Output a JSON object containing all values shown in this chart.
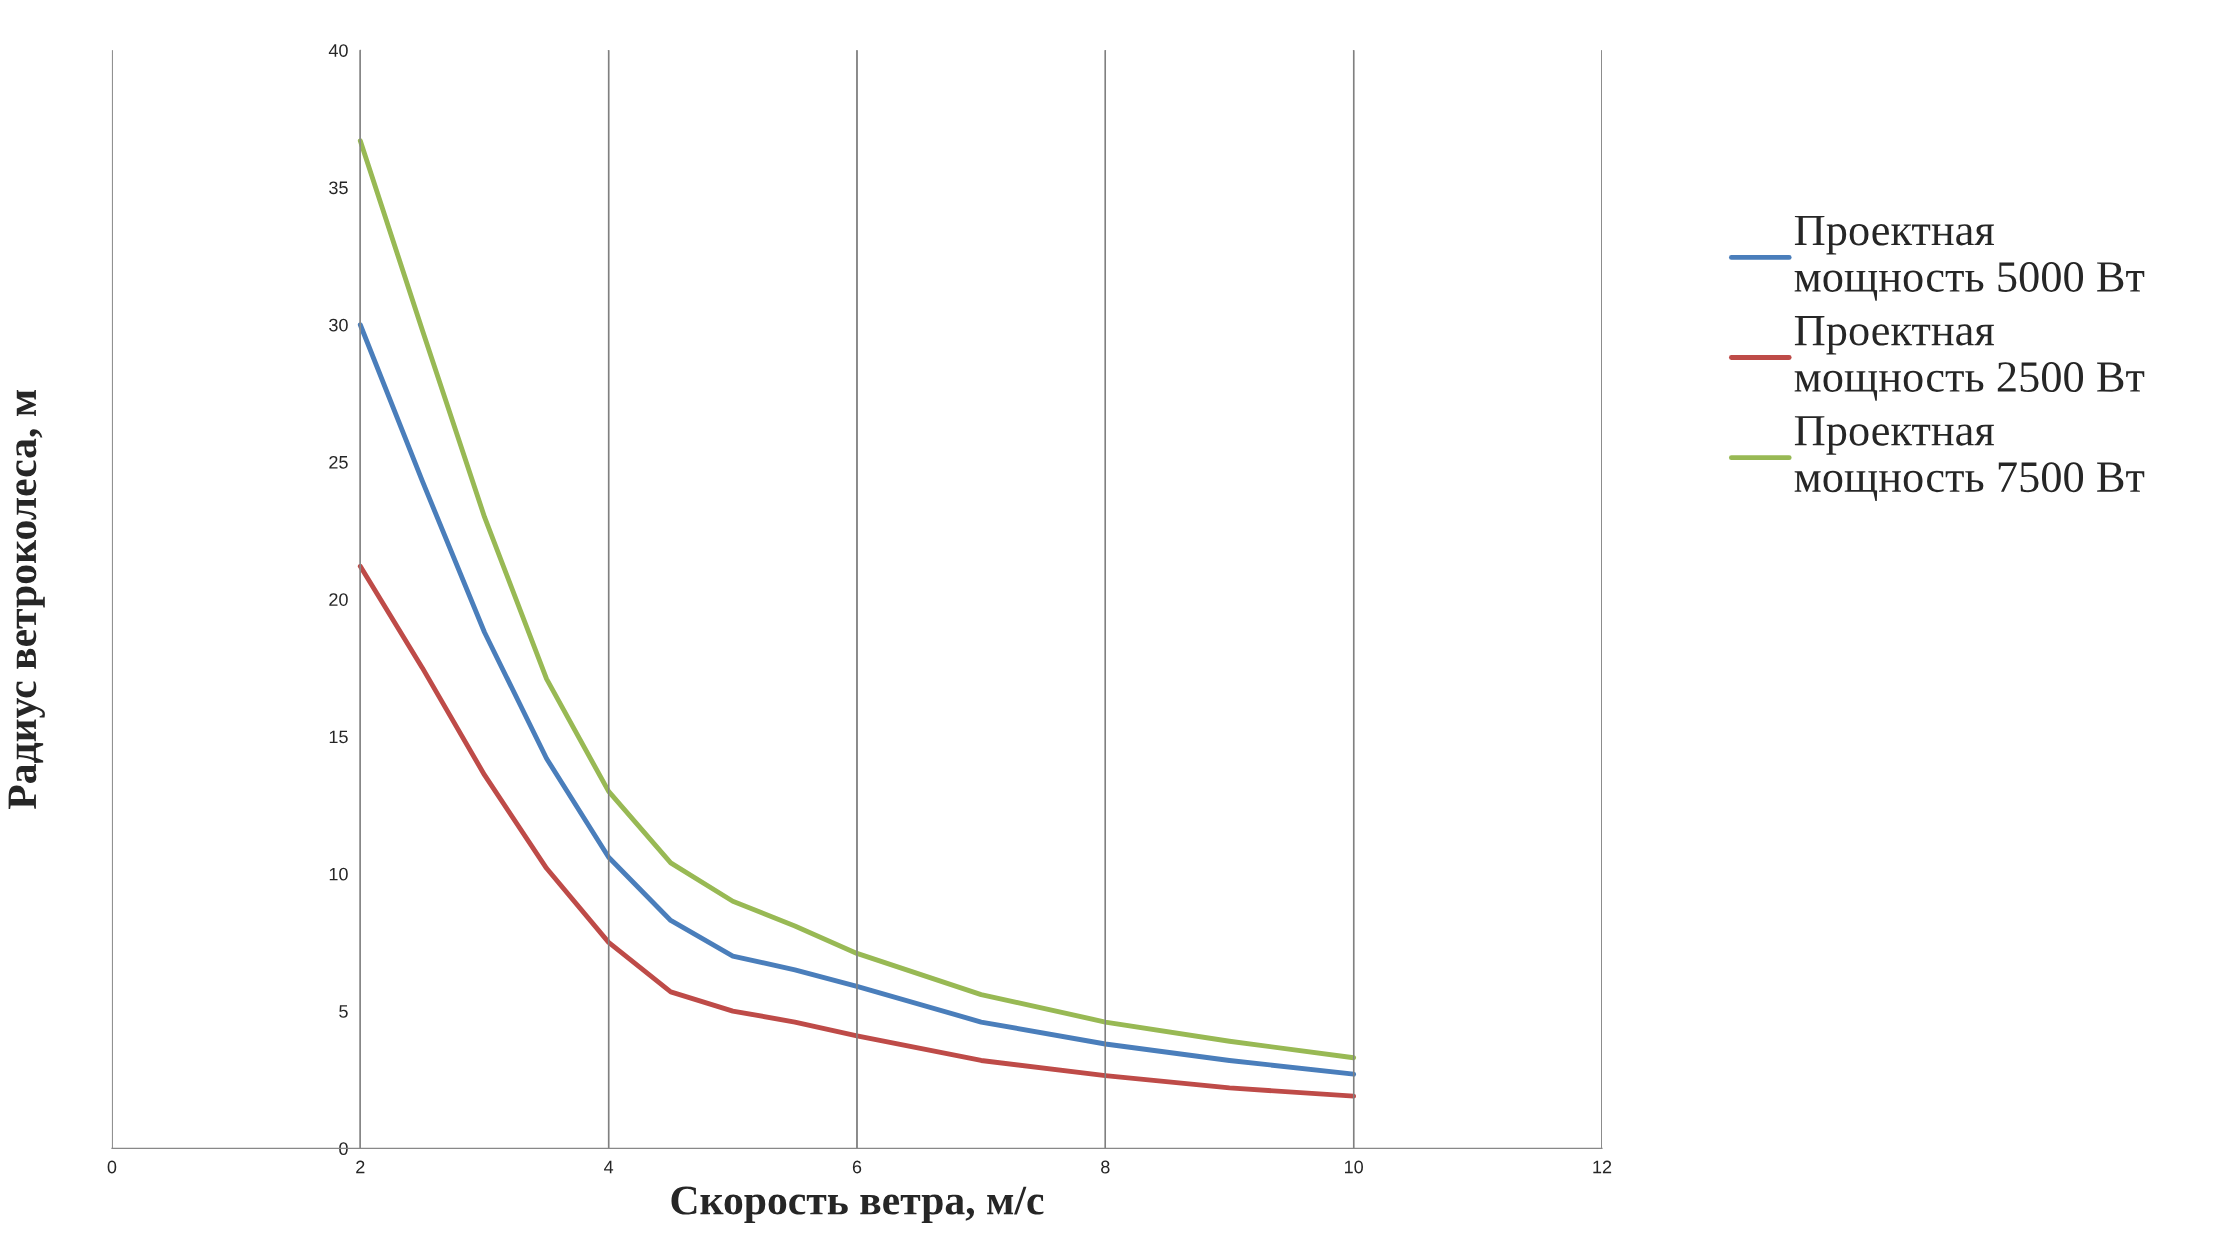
{
  "chart_data": {
    "type": "line",
    "xlabel": "Скорость ветра, м/с",
    "ylabel": "Радиус ветроколеса, м",
    "x": [
      2,
      2.5,
      3,
      3.5,
      4,
      4.5,
      5,
      5.5,
      6,
      7,
      8,
      9,
      10
    ],
    "series": [
      {
        "name": "Проектная мощность 5000 Вт",
        "color": "#4a7ebb",
        "values": [
          30.0,
          24.3,
          18.8,
          14.2,
          10.6,
          8.3,
          7.0,
          6.5,
          5.9,
          4.6,
          3.8,
          3.2,
          2.7
        ]
      },
      {
        "name": "Проектная мощность 2500 Вт",
        "color": "#be4b48",
        "values": [
          21.2,
          17.5,
          13.6,
          10.2,
          7.5,
          5.7,
          5.0,
          4.6,
          4.1,
          3.2,
          2.65,
          2.2,
          1.9
        ]
      },
      {
        "name": "Проектная мощность 7500 Вт",
        "color": "#98b954",
        "values": [
          36.7,
          29.8,
          23.0,
          17.1,
          13.0,
          10.4,
          9.0,
          8.1,
          7.1,
          5.6,
          4.6,
          3.9,
          3.3
        ]
      }
    ],
    "xlim": [
      0,
      12
    ],
    "xticks": [
      0,
      2,
      4,
      6,
      8,
      10,
      12
    ],
    "ylim": [
      0,
      40
    ],
    "yticks": [
      0,
      5,
      10,
      15,
      20,
      25,
      30,
      35,
      40
    ],
    "grid": "x",
    "legend": "right",
    "marker": "none",
    "line_style": "solid"
  }
}
